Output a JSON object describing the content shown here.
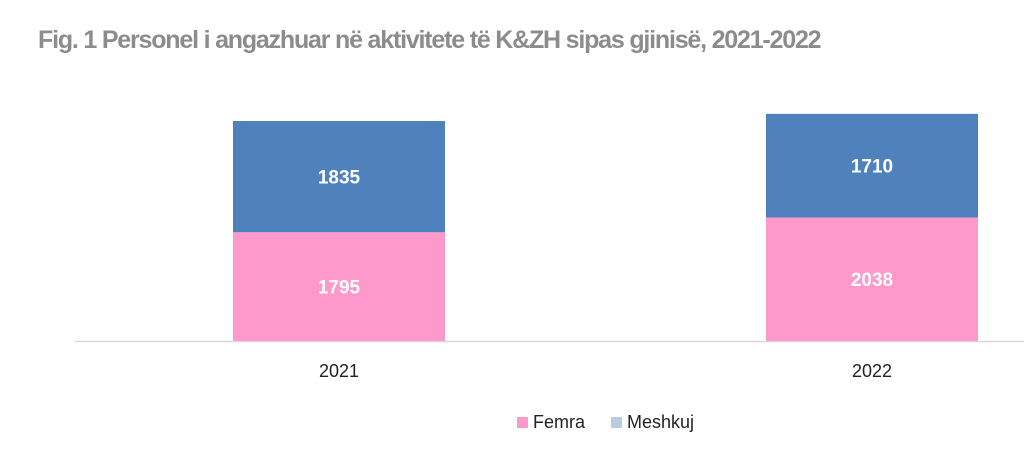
{
  "chart_data": {
    "type": "bar",
    "stacked": true,
    "title": "Fig. 1 Personel i angazhuar në aktivitete të K&ZH sipas gjinisë, 2021-2022",
    "categories": [
      "2021",
      "2022"
    ],
    "series": [
      {
        "name": "Femra",
        "values": [
          1795,
          2038
        ],
        "color": "#ff99cc"
      },
      {
        "name": "Meshkuj",
        "values": [
          1835,
          1710
        ],
        "color": "#4f81bd"
      }
    ],
    "legend_colors": [
      "#ff99cc",
      "#b8cce4"
    ],
    "xlabel": "",
    "ylabel": "",
    "ylim": [
      0,
      4000
    ],
    "grid": false,
    "data_labels": true,
    "legend_position": "bottom"
  }
}
